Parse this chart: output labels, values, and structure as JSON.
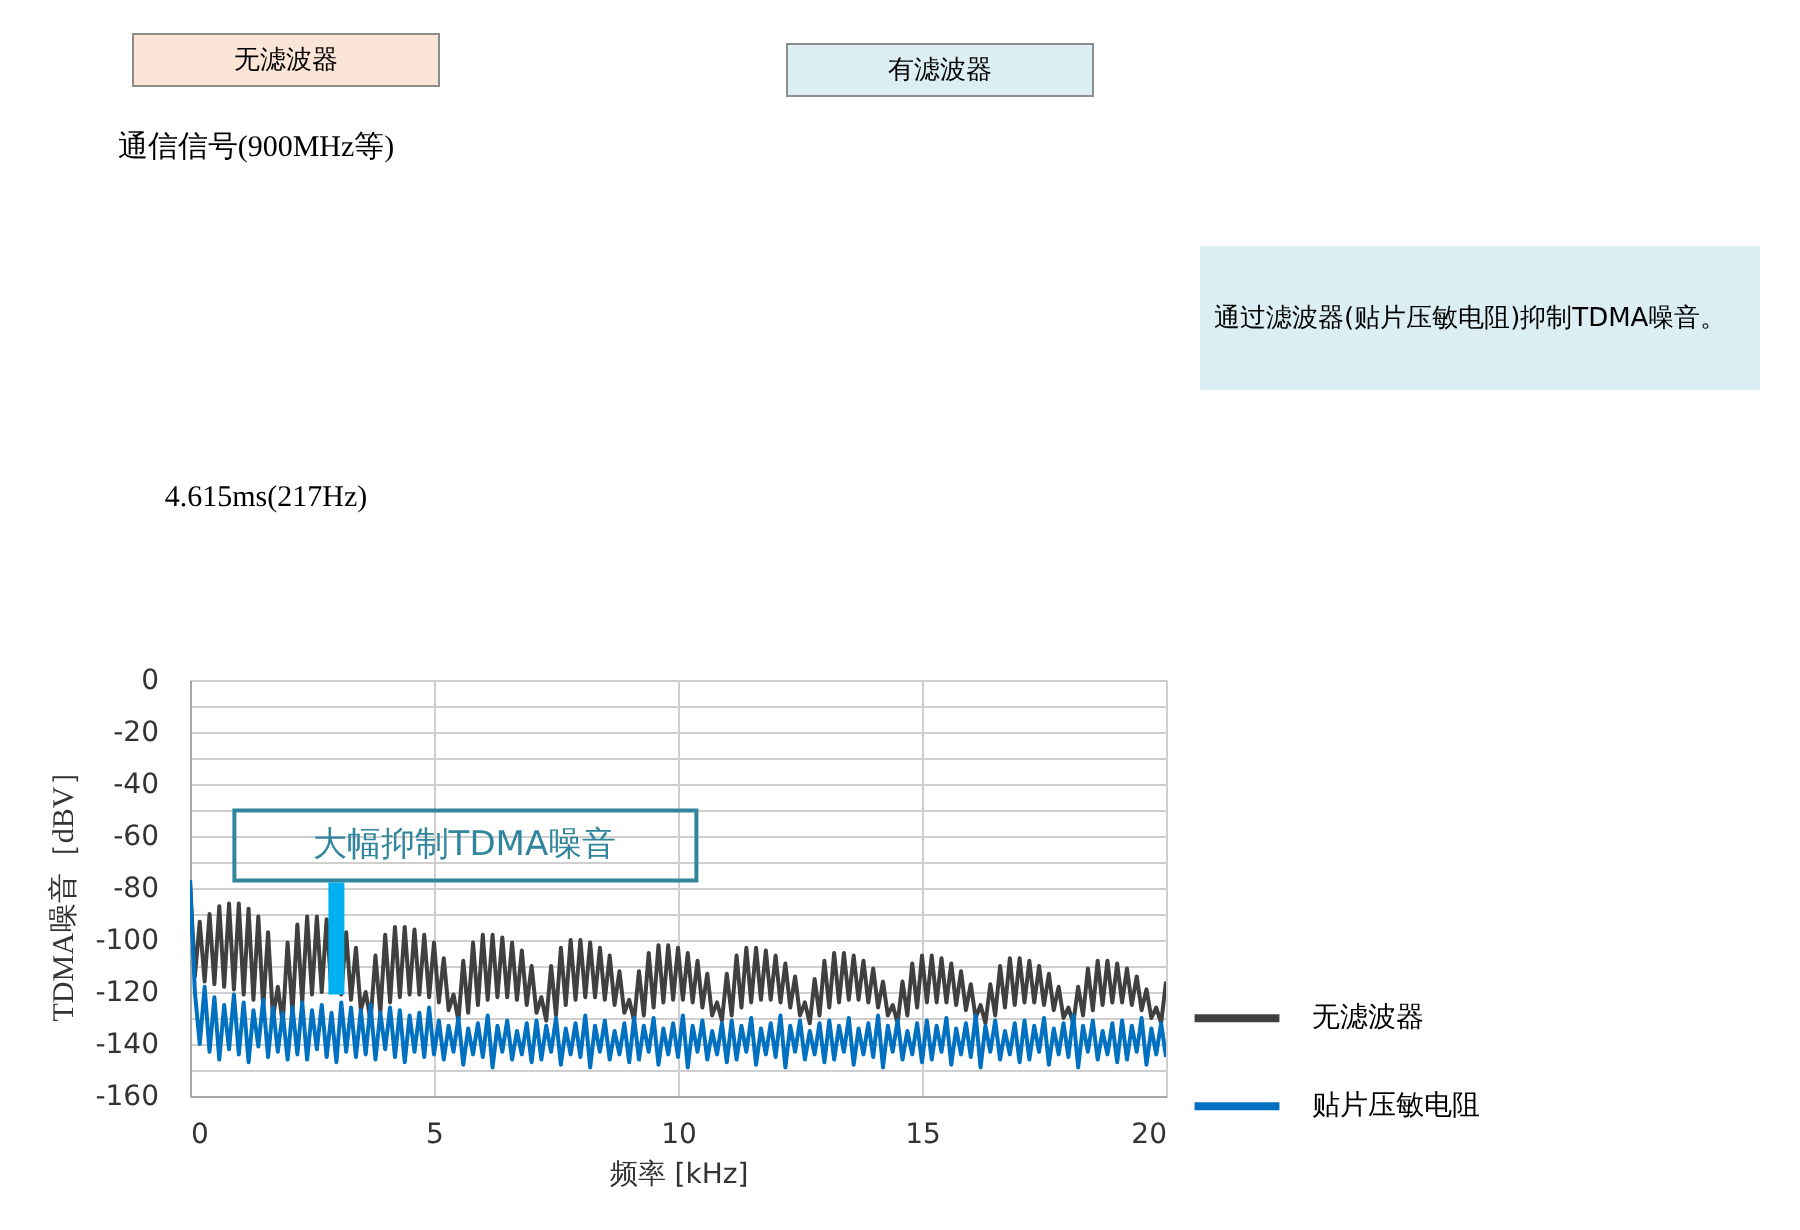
{
  "chart_data": {
    "type": "line",
    "xlabel": "频率 [kHz]",
    "ylabel": "TDMA噪音［dBV］",
    "x": [
      0,
      0.1,
      0.2,
      0.3,
      0.4,
      0.5,
      0.6,
      0.7,
      0.8,
      0.9,
      1,
      1.1,
      1.2,
      1.3,
      1.4,
      1.5,
      1.6,
      1.7,
      1.8,
      1.9,
      2,
      2.1,
      2.2,
      2.3,
      2.4,
      2.5,
      2.6,
      2.7,
      2.8,
      2.9,
      3,
      3.1,
      3.2,
      3.3,
      3.4,
      3.5,
      3.6,
      3.7,
      3.8,
      3.9,
      4,
      4.1,
      4.2,
      4.3,
      4.4,
      4.5,
      4.6,
      4.7,
      4.8,
      4.9,
      5,
      5.1,
      5.2,
      5.3,
      5.4,
      5.5,
      5.6,
      5.7,
      5.8,
      5.9,
      6,
      6.1,
      6.2,
      6.3,
      6.4,
      6.5,
      6.6,
      6.7,
      6.8,
      6.9,
      7,
      7.1,
      7.2,
      7.3,
      7.4,
      7.5,
      7.6,
      7.7,
      7.8,
      7.9,
      8,
      8.1,
      8.2,
      8.3,
      8.4,
      8.5,
      8.6,
      8.7,
      8.8,
      8.9,
      9,
      9.1,
      9.2,
      9.3,
      9.4,
      9.5,
      9.6,
      9.7,
      9.8,
      9.9,
      10,
      10.1,
      10.2,
      10.3,
      10.4,
      10.5,
      10.6,
      10.7,
      10.8,
      10.9,
      11,
      11.1,
      11.2,
      11.3,
      11.4,
      11.5,
      11.6,
      11.7,
      11.8,
      11.9,
      12,
      12.1,
      12.2,
      12.3,
      12.4,
      12.5,
      12.6,
      12.7,
      12.8,
      12.9,
      13,
      13.1,
      13.2,
      13.3,
      13.4,
      13.5,
      13.6,
      13.7,
      13.8,
      13.9,
      14,
      14.1,
      14.2,
      14.3,
      14.4,
      14.5,
      14.6,
      14.7,
      14.8,
      14.9,
      15,
      15.1,
      15.2,
      15.3,
      15.4,
      15.5,
      15.6,
      15.7,
      15.8,
      15.9,
      16,
      16.1,
      16.2,
      16.3,
      16.4,
      16.5,
      16.6,
      16.7,
      16.8,
      16.9,
      17,
      17.1,
      17.2,
      17.3,
      17.4,
      17.5,
      17.6,
      17.7,
      17.8,
      17.9,
      18,
      18.1,
      18.2,
      18.3,
      18.4,
      18.5,
      18.6,
      18.7,
      18.8,
      18.9,
      19,
      19.1,
      19.2,
      19.3,
      19.4,
      19.5,
      19.6,
      19.7,
      19.8,
      19.9,
      20
    ],
    "series": [
      {
        "name": "无滤波器",
        "color": "#404040",
        "values": [
          -77,
          -114,
          -93,
          -116,
          -90,
          -117,
          -87,
          -118,
          -86,
          -119,
          -86,
          -121,
          -88,
          -123,
          -91,
          -126,
          -97,
          -130,
          -118,
          -132,
          -101,
          -128,
          -94,
          -124,
          -91,
          -121,
          -91,
          -120,
          -92,
          -120,
          -94,
          -121,
          -97,
          -123,
          -103,
          -127,
          -120,
          -131,
          -106,
          -128,
          -98,
          -124,
          -95,
          -122,
          -95,
          -121,
          -96,
          -121,
          -98,
          -122,
          -101,
          -124,
          -107,
          -127,
          -121,
          -131,
          -108,
          -128,
          -101,
          -125,
          -98,
          -123,
          -98,
          -122,
          -99,
          -122,
          -101,
          -123,
          -104,
          -125,
          -110,
          -128,
          -122,
          -131,
          -110,
          -129,
          -103,
          -125,
          -100,
          -123,
          -100,
          -122,
          -101,
          -122,
          -103,
          -123,
          -106,
          -125,
          -112,
          -128,
          -123,
          -131,
          -112,
          -129,
          -105,
          -126,
          -102,
          -124,
          -102,
          -123,
          -103,
          -123,
          -105,
          -124,
          -108,
          -126,
          -113,
          -129,
          -124,
          -131,
          -113,
          -129,
          -106,
          -126,
          -103,
          -124,
          -103,
          -123,
          -104,
          -123,
          -106,
          -124,
          -109,
          -126,
          -114,
          -129,
          -124,
          -132,
          -115,
          -129,
          -108,
          -126,
          -105,
          -124,
          -105,
          -123,
          -106,
          -123,
          -108,
          -124,
          -111,
          -126,
          -116,
          -129,
          -125,
          -132,
          -116,
          -129,
          -109,
          -126,
          -106,
          -124,
          -106,
          -124,
          -107,
          -124,
          -109,
          -125,
          -112,
          -127,
          -117,
          -130,
          -125,
          -132,
          -117,
          -129,
          -110,
          -126,
          -107,
          -125,
          -107,
          -124,
          -108,
          -124,
          -110,
          -125,
          -113,
          -127,
          -118,
          -130,
          -126,
          -132,
          -118,
          -129,
          -111,
          -127,
          -108,
          -125,
          -108,
          -124,
          -109,
          -124,
          -111,
          -125,
          -114,
          -127,
          -119,
          -130,
          -126,
          -132,
          -116
        ]
      },
      {
        "name": "贴片压敏电阻",
        "color": "#0070c0",
        "values": [
          -77,
          -120,
          -140,
          -118,
          -143,
          -122,
          -146,
          -125,
          -142,
          -121,
          -144,
          -124,
          -147,
          -127,
          -141,
          -123,
          -145,
          -126,
          -143,
          -128,
          -146,
          -126,
          -144,
          -124,
          -146,
          -127,
          -142,
          -125,
          -145,
          -128,
          -147,
          -124,
          -143,
          -126,
          -145,
          -127,
          -144,
          -125,
          -146,
          -128,
          -142,
          -126,
          -145,
          -127,
          -147,
          -129,
          -143,
          -128,
          -145,
          -126,
          -144,
          -131,
          -146,
          -133,
          -143,
          -130,
          -148,
          -134,
          -144,
          -132,
          -145,
          -129,
          -149,
          -133,
          -143,
          -131,
          -146,
          -135,
          -144,
          -132,
          -147,
          -131,
          -146,
          -133,
          -143,
          -130,
          -148,
          -134,
          -144,
          -132,
          -145,
          -129,
          -149,
          -133,
          -143,
          -131,
          -146,
          -135,
          -144,
          -132,
          -147,
          -130,
          -146,
          -133,
          -143,
          -130,
          -148,
          -134,
          -144,
          -132,
          -145,
          -129,
          -149,
          -133,
          -143,
          -131,
          -146,
          -135,
          -144,
          -132,
          -147,
          -131,
          -146,
          -133,
          -143,
          -130,
          -148,
          -134,
          -144,
          -132,
          -145,
          -129,
          -149,
          -133,
          -143,
          -131,
          -146,
          -135,
          -144,
          -132,
          -147,
          -131,
          -146,
          -133,
          -143,
          -130,
          -148,
          -134,
          -144,
          -132,
          -145,
          -129,
          -149,
          -133,
          -143,
          -131,
          -146,
          -135,
          -144,
          -132,
          -147,
          -131,
          -146,
          -133,
          -143,
          -130,
          -148,
          -134,
          -144,
          -132,
          -145,
          -129,
          -149,
          -133,
          -143,
          -131,
          -146,
          -135,
          -144,
          -132,
          -147,
          -131,
          -146,
          -133,
          -143,
          -130,
          -148,
          -134,
          -144,
          -132,
          -145,
          -129,
          -149,
          -133,
          -143,
          -131,
          -146,
          -135,
          -144,
          -132,
          -147,
          -131,
          -146,
          -133,
          -143,
          -130,
          -148,
          -134,
          -144,
          -132,
          -145
        ]
      }
    ],
    "xlim": [
      0,
      20
    ],
    "xticks": [
      0,
      5,
      10,
      15,
      20
    ],
    "ylim": [
      -160,
      0
    ],
    "yticks": [
      0,
      {
        "value": -10,
        "label": null
      },
      -20,
      {
        "value": -30,
        "label": null
      },
      -40,
      {
        "value": -50,
        "label": null
      },
      -60,
      {
        "value": -70,
        "label": null
      },
      -80,
      {
        "value": -90,
        "label": null
      },
      -100,
      {
        "value": -110,
        "label": null
      },
      -120,
      {
        "value": -130,
        "label": null
      },
      -140,
      {
        "value": -150,
        "label": null
      },
      -160
    ],
    "grid": true,
    "legend": "right",
    "line_style": "solid",
    "annotations": [
      "无滤波器",
      "有滤波器",
      "通信信号(900MHz等)",
      "4.615ms(217Hz)",
      "通过滤波器(贴片压敏电阻)抑制TDMA噪音。",
      {
        "text": "大幅抑制TDMA噪音",
        "x": 3,
        "y": -121
      }
    ]
  }
}
